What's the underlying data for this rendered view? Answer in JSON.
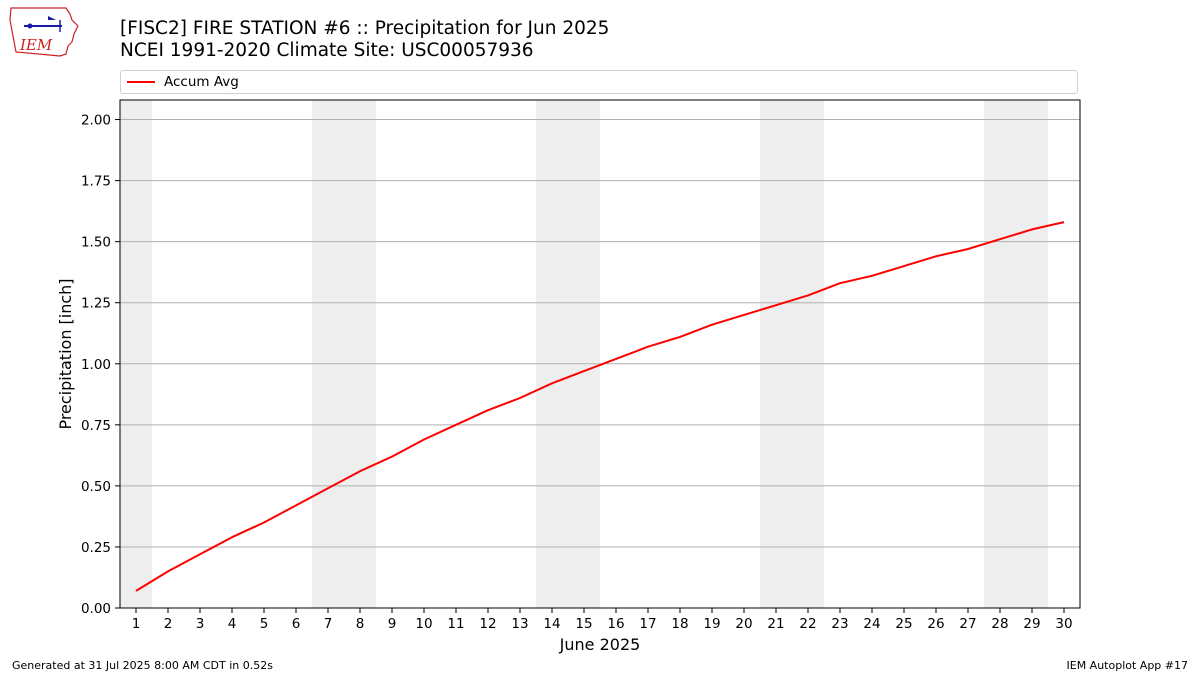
{
  "header": {
    "title_line1": "[FISC2] FIRE STATION #6 :: Precipitation for Jun 2025",
    "title_line2": "NCEI 1991-2020 Climate Site: USC00057936",
    "logo_text": "IEM"
  },
  "legend": {
    "series_label": "Accum Avg"
  },
  "footer": {
    "generated": "Generated at 31 Jul 2025 8:00 AM CDT in 0.52s",
    "app": "IEM Autoplot App #17"
  },
  "colors": {
    "series": "#ff0000",
    "weekend_band": "#eeeeee",
    "grid": "#b0b0b0",
    "logo": "#cc2222"
  },
  "chart_data": {
    "type": "line",
    "title": "[FISC2] FIRE STATION #6 :: Precipitation for Jun 2025",
    "subtitle": "NCEI 1991-2020 Climate Site: USC00057936",
    "xlabel": "June 2025",
    "ylabel": "Precipitation [inch]",
    "x": [
      1,
      2,
      3,
      4,
      5,
      6,
      7,
      8,
      9,
      10,
      11,
      12,
      13,
      14,
      15,
      16,
      17,
      18,
      19,
      20,
      21,
      22,
      23,
      24,
      25,
      26,
      27,
      28,
      29,
      30
    ],
    "series": [
      {
        "name": "Accum Avg",
        "values": [
          0.07,
          0.15,
          0.22,
          0.29,
          0.35,
          0.42,
          0.49,
          0.56,
          0.62,
          0.69,
          0.75,
          0.81,
          0.86,
          0.92,
          0.97,
          1.02,
          1.07,
          1.11,
          1.16,
          1.2,
          1.24,
          1.28,
          1.33,
          1.36,
          1.4,
          1.44,
          1.47,
          1.51,
          1.55,
          1.58
        ]
      }
    ],
    "xlim": [
      0.5,
      30.5
    ],
    "ylim": [
      0,
      2.08
    ],
    "yticks": [
      "0.00",
      "0.25",
      "0.50",
      "0.75",
      "1.00",
      "1.25",
      "1.50",
      "1.75",
      "2.00"
    ],
    "weekend_days": [
      1,
      7,
      8,
      14,
      15,
      21,
      22,
      28,
      29
    ],
    "grid": "horizontal",
    "legend_position": "top"
  }
}
